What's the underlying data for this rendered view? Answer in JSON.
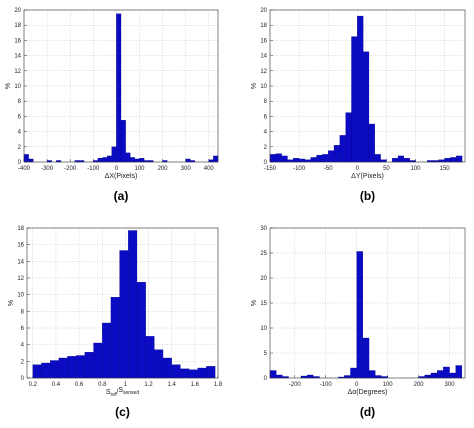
{
  "chart_data": [
    {
      "type": "histogram",
      "caption": "(a)",
      "y_label": "%",
      "x_label": "ΔX(Pixels)",
      "color": "#0b0bc4",
      "grid": true,
      "bins": [
        -400,
        -380,
        -360,
        -340,
        -320,
        -300,
        -280,
        -260,
        -240,
        -220,
        -200,
        -180,
        -160,
        -140,
        -120,
        -100,
        -80,
        -60,
        -40,
        -20,
        0,
        20,
        40,
        60,
        80,
        100,
        120,
        140,
        160,
        180,
        200,
        220,
        240,
        260,
        280,
        300,
        320,
        340,
        360,
        380,
        400,
        420,
        440
      ],
      "values": [
        1.0,
        0.4,
        0,
        0,
        0,
        0.2,
        0,
        0.2,
        0,
        0,
        0,
        0.2,
        0.2,
        0,
        0,
        0.2,
        0.5,
        0.6,
        0.8,
        2.0,
        19.5,
        5.5,
        1.2,
        0.6,
        0.4,
        0.5,
        0.2,
        0.2,
        0,
        0,
        0.2,
        0,
        0,
        0,
        0,
        0.4,
        0.2,
        0,
        0,
        0,
        0.3,
        0.8
      ],
      "xlim": [
        -400,
        440
      ],
      "xticks": [
        -400,
        -300,
        -200,
        -100,
        0,
        100,
        200,
        300,
        400
      ],
      "ylim": [
        0,
        20
      ],
      "yticks": [
        0,
        2,
        4,
        6,
        8,
        10,
        12,
        14,
        16,
        18,
        20
      ]
    },
    {
      "type": "histogram",
      "caption": "(b)",
      "y_label": "%",
      "x_label": "ΔY(Pixels)",
      "color": "#0b0bc4",
      "grid": true,
      "bins": [
        -150,
        -140,
        -130,
        -120,
        -110,
        -100,
        -90,
        -80,
        -70,
        -60,
        -50,
        -40,
        -30,
        -20,
        -10,
        0,
        10,
        20,
        30,
        40,
        50,
        60,
        70,
        80,
        90,
        100,
        110,
        120,
        130,
        140,
        150,
        160,
        170,
        180
      ],
      "values": [
        1.0,
        1.1,
        0.8,
        0.3,
        0.5,
        0.4,
        0.3,
        0.6,
        0.9,
        1.0,
        1.5,
        2.2,
        3.5,
        6.5,
        16.5,
        19.2,
        14.5,
        5.0,
        1.0,
        0.3,
        0,
        0.5,
        0.8,
        0.5,
        0.2,
        0,
        0,
        0.2,
        0.2,
        0.3,
        0.5,
        0.6,
        0.8
      ],
      "xlim": [
        -150,
        185
      ],
      "xticks": [
        -150,
        -100,
        -50,
        0,
        50,
        100,
        150
      ],
      "ylim": [
        0,
        20
      ],
      "yticks": [
        0,
        2,
        4,
        6,
        8,
        10,
        12,
        14,
        16,
        18,
        20
      ]
    },
    {
      "type": "histogram",
      "caption": "(c)",
      "y_label": "%",
      "x_label": [
        "S",
        "ref",
        "/",
        "S",
        "sensed"
      ],
      "color": "#0b0bc4",
      "grid": true,
      "bins": [
        0.2,
        0.275,
        0.35,
        0.425,
        0.5,
        0.575,
        0.65,
        0.725,
        0.8,
        0.875,
        0.95,
        1.025,
        1.1,
        1.175,
        1.25,
        1.325,
        1.4,
        1.475,
        1.55,
        1.625,
        1.7,
        1.775
      ],
      "values": [
        1.6,
        1.8,
        2.1,
        2.4,
        2.6,
        2.7,
        3.1,
        4.2,
        6.6,
        9.7,
        15.3,
        17.7,
        11.5,
        5.0,
        3.4,
        2.4,
        1.6,
        1.1,
        1.0,
        1.2,
        1.4
      ],
      "xlim": [
        0.15,
        1.8
      ],
      "xticks": [
        0.2,
        0.4,
        0.6,
        0.8,
        1,
        1.2,
        1.4,
        1.6,
        1.8
      ],
      "ylim": [
        0,
        18
      ],
      "yticks": [
        0,
        2,
        4,
        6,
        8,
        10,
        12,
        14,
        16,
        18
      ]
    },
    {
      "type": "histogram",
      "caption": "(d)",
      "y_label": "%",
      "x_label": "Δα(Degrees)",
      "color": "#0b0bc4",
      "grid": true,
      "bins": [
        -280,
        -260,
        -240,
        -220,
        -200,
        -180,
        -160,
        -140,
        -120,
        -100,
        -80,
        -60,
        -40,
        -20,
        0,
        20,
        40,
        60,
        80,
        100,
        120,
        140,
        160,
        180,
        200,
        220,
        240,
        260,
        280,
        300,
        320,
        340
      ],
      "values": [
        1.5,
        0.6,
        0.3,
        0,
        0,
        0.4,
        0.6,
        0.3,
        0,
        0,
        0,
        0.2,
        0.5,
        2.0,
        25.3,
        8.0,
        1.5,
        0.5,
        0.3,
        0,
        0,
        0,
        0,
        0,
        0.3,
        0.6,
        1.0,
        1.5,
        2.2,
        1.0,
        2.5
      ],
      "xlim": [
        -280,
        350
      ],
      "xticks": [
        -200,
        -100,
        0,
        100,
        200,
        300
      ],
      "ylim": [
        0,
        30
      ],
      "yticks": [
        0,
        5,
        10,
        15,
        20,
        25,
        30
      ]
    }
  ]
}
